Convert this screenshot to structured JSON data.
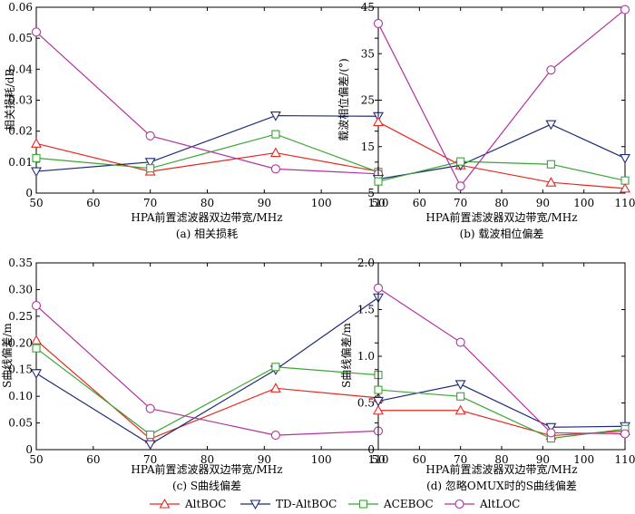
{
  "legend": [
    {
      "name": "AltBOC",
      "color": "#e8281e",
      "marker": "triangle-up"
    },
    {
      "name": "TD-AltBOC",
      "color": "#1f2a78",
      "marker": "triangle-down"
    },
    {
      "name": "ACEBOC",
      "color": "#3aa534",
      "marker": "square"
    },
    {
      "name": "AltLOC",
      "color": "#b2329e",
      "marker": "circle"
    }
  ],
  "chart_data": [
    {
      "type": "line",
      "caption": "(a) 相关损耗",
      "xlabel": "HPA前置滤波器双边带宽/MHz",
      "ylabel": "相关损耗/dB",
      "x": [
        50,
        70,
        92,
        110
      ],
      "xlim": [
        50,
        110
      ],
      "xticks": [
        "50",
        "60",
        "70",
        "80",
        "90",
        "100",
        "110"
      ],
      "ylim": [
        0,
        0.06
      ],
      "yticks": [
        "0",
        "0.01",
        "0.02",
        "0.03",
        "0.04",
        "0.05",
        "0.06"
      ],
      "series": [
        {
          "name": "AltBOC",
          "values": [
            0.016,
            0.007,
            0.013,
            0.007
          ]
        },
        {
          "name": "TD-AltBOC",
          "values": [
            0.007,
            0.01,
            0.025,
            0.0248
          ]
        },
        {
          "name": "ACEBOC",
          "values": [
            0.0113,
            0.008,
            0.019,
            0.0068
          ]
        },
        {
          "name": "AltLOC",
          "values": [
            0.052,
            0.0185,
            0.0078,
            0.0062
          ]
        }
      ]
    },
    {
      "type": "line",
      "caption": "(b) 载波相位偏差",
      "xlabel": "HPA前置滤波器双边带宽/MHz",
      "ylabel": "载波相位偏差/(°)",
      "x": [
        50,
        70,
        92,
        110
      ],
      "xlim": [
        50,
        110
      ],
      "xticks": [
        "50",
        "60",
        "70",
        "80",
        "90",
        "100",
        "110"
      ],
      "ylim": [
        5,
        45
      ],
      "yticks": [
        "5",
        "15",
        "25",
        "35",
        "45"
      ],
      "series": [
        {
          "name": "AltBOC",
          "values": [
            20.3,
            11.0,
            7.3,
            6.0
          ]
        },
        {
          "name": "TD-AltBOC",
          "values": [
            8.0,
            11.0,
            19.8,
            12.5
          ]
        },
        {
          "name": "ACEBOC",
          "values": [
            7.5,
            11.8,
            11.2,
            7.7
          ]
        },
        {
          "name": "AltLOC",
          "values": [
            41.5,
            6.5,
            31.5,
            44.5
          ]
        }
      ]
    },
    {
      "type": "line",
      "caption": "(c) S曲线偏差",
      "xlabel": "HPA前置滤波器双边带宽/MHz",
      "ylabel": "S曲线偏差/m",
      "x": [
        50,
        70,
        92,
        110
      ],
      "xlim": [
        50,
        110
      ],
      "xticks": [
        "50",
        "60",
        "70",
        "80",
        "90",
        "100",
        "110"
      ],
      "ylim": [
        0,
        0.35
      ],
      "yticks": [
        "0",
        "0.05",
        "0.10",
        "0.15",
        "0.20",
        "0.25",
        "0.30",
        "0.35"
      ],
      "series": [
        {
          "name": "AltBOC",
          "values": [
            0.205,
            0.02,
            0.115,
            0.097
          ]
        },
        {
          "name": "TD-AltBOC",
          "values": [
            0.143,
            0.01,
            0.15,
            0.285
          ]
        },
        {
          "name": "ACEBOC",
          "values": [
            0.19,
            0.028,
            0.155,
            0.14
          ]
        },
        {
          "name": "AltLOC",
          "values": [
            0.27,
            0.077,
            0.027,
            0.035
          ]
        }
      ]
    },
    {
      "type": "line",
      "caption": "(d) 忽略OMUX时的S曲线偏差",
      "xlabel": "HPA前置滤波器双边带宽/MHz",
      "ylabel": "S曲线偏差/m",
      "x": [
        50,
        70,
        92,
        110
      ],
      "xlim": [
        50,
        110
      ],
      "xticks": [
        "50",
        "60",
        "70",
        "80",
        "90",
        "100",
        "110"
      ],
      "ylim": [
        0,
        2.0
      ],
      "yticks": [
        "0",
        "0.5",
        "1.0",
        "1.5",
        "2.0"
      ],
      "series": [
        {
          "name": "AltBOC",
          "values": [
            0.42,
            0.42,
            0.15,
            0.2
          ]
        },
        {
          "name": "TD-AltBOC",
          "values": [
            0.52,
            0.7,
            0.24,
            0.25
          ]
        },
        {
          "name": "ACEBOC",
          "values": [
            0.64,
            0.57,
            0.12,
            0.22
          ]
        },
        {
          "name": "AltLOC",
          "values": [
            1.73,
            1.15,
            0.18,
            0.17
          ]
        }
      ]
    }
  ]
}
